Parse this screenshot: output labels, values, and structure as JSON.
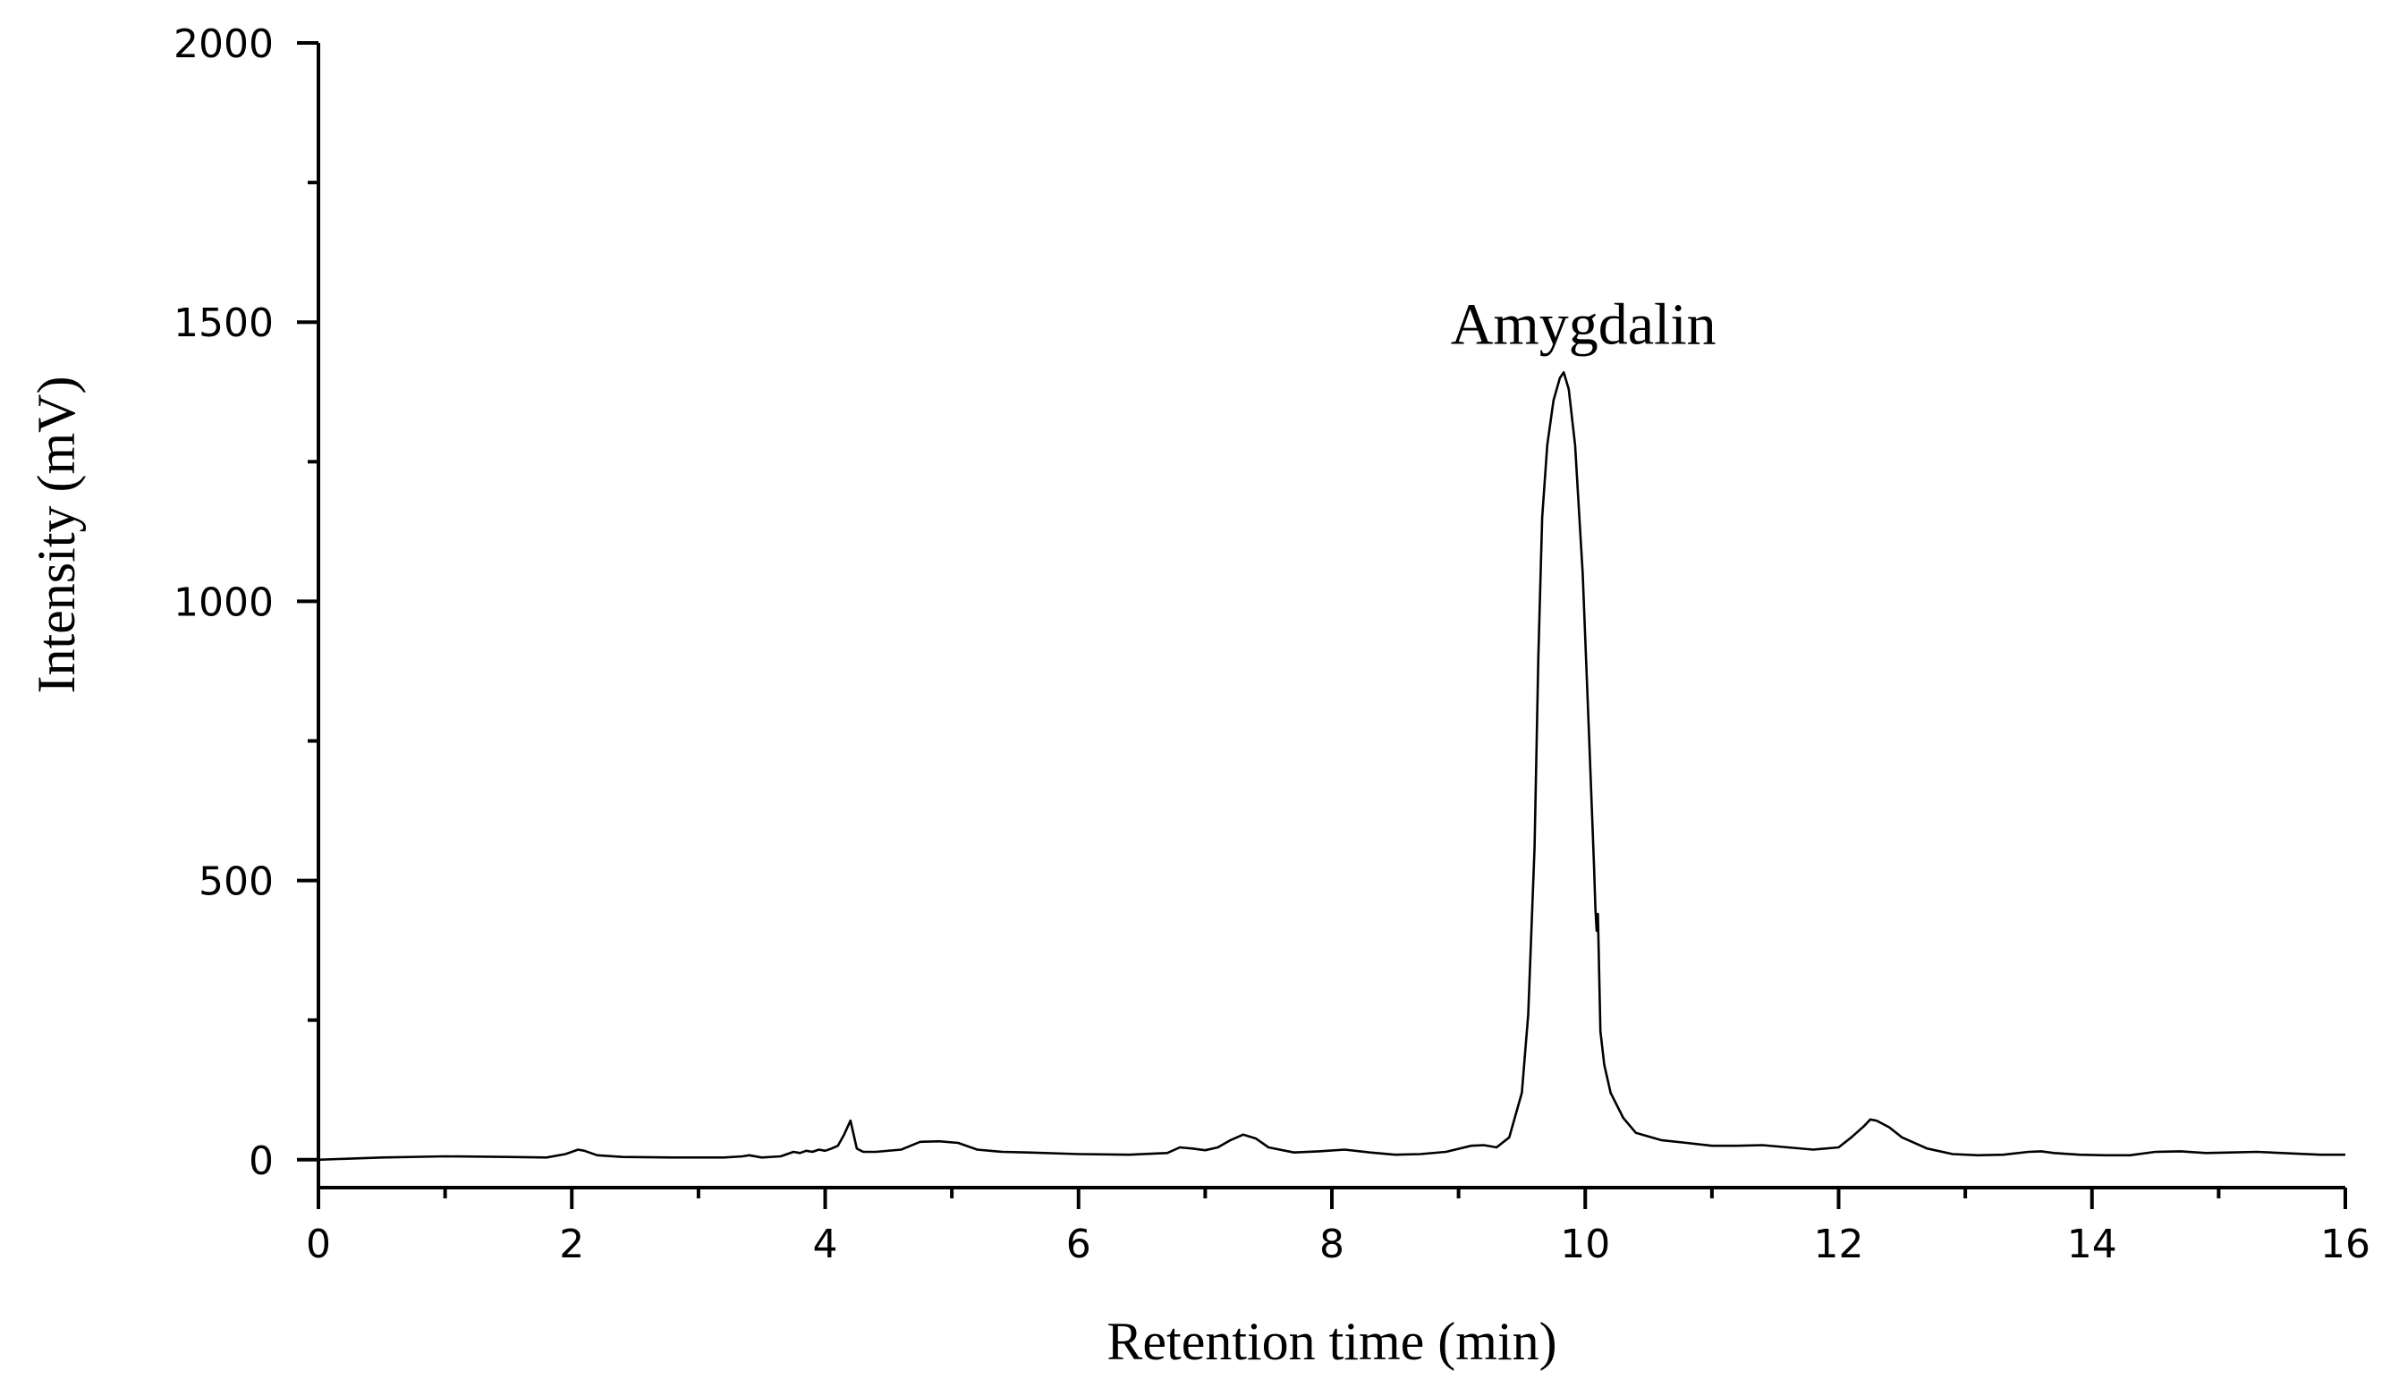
{
  "chart_data": {
    "type": "line",
    "title": "",
    "xlabel": "Retention time (min)",
    "ylabel": "Intensity (mV)",
    "xlim": [
      0,
      16
    ],
    "ylim": [
      -50,
      2000
    ],
    "x_ticks": [
      0,
      2,
      4,
      6,
      8,
      10,
      12,
      14,
      16
    ],
    "x_tick_labels": [
      "0",
      "2",
      "4",
      "6",
      "8",
      "10",
      "12",
      "14",
      "16"
    ],
    "y_ticks": [
      0,
      500,
      1000,
      1500,
      2000
    ],
    "y_tick_labels": [
      "0",
      "500",
      "1000",
      "1500",
      "2000"
    ],
    "grid": false,
    "annotations": [
      {
        "text": "Amygdalin",
        "x": 9.83,
        "y": 1410
      }
    ],
    "series": [
      {
        "color": "#000000",
        "x": [
          0,
          0.5,
          1.0,
          1.5,
          1.8,
          1.95,
          2.05,
          2.1,
          2.2,
          2.4,
          2.8,
          3.2,
          3.35,
          3.4,
          3.5,
          3.65,
          3.75,
          3.8,
          3.85,
          3.9,
          3.95,
          4.0,
          4.05,
          4.1,
          4.15,
          4.2,
          4.25,
          4.3,
          4.4,
          4.6,
          4.75,
          4.9,
          5.05,
          5.2,
          5.35,
          5.4,
          5.6,
          6.0,
          6.4,
          6.7,
          6.8,
          6.9,
          7.0,
          7.1,
          7.2,
          7.3,
          7.4,
          7.5,
          7.7,
          7.9,
          8.1,
          8.3,
          8.5,
          8.7,
          8.9,
          9.1,
          9.2,
          9.3,
          9.4,
          9.5,
          9.55,
          9.6,
          9.63,
          9.66,
          9.7,
          9.75,
          9.8,
          9.83,
          9.87,
          9.92,
          9.98,
          10.03,
          10.07,
          10.08,
          10.09,
          10.1,
          10.12,
          10.15,
          10.2,
          10.3,
          10.4,
          10.6,
          10.8,
          11.0,
          11.2,
          11.4,
          11.6,
          11.8,
          12.0,
          12.1,
          12.2,
          12.25,
          12.3,
          12.4,
          12.5,
          12.7,
          12.9,
          13.1,
          13.3,
          13.5,
          13.6,
          13.7,
          13.9,
          14.1,
          14.3,
          14.5,
          14.7,
          14.9,
          15.1,
          15.3,
          15.5,
          15.8,
          16.0
        ],
        "y": [
          0,
          4,
          6,
          5,
          4,
          10,
          18,
          16,
          8,
          5,
          4,
          4,
          6,
          8,
          4,
          6,
          14,
          12,
          16,
          14,
          18,
          16,
          20,
          25,
          45,
          70,
          20,
          14,
          14,
          18,
          32,
          33,
          30,
          18,
          15,
          14,
          13,
          10,
          9,
          12,
          22,
          20,
          17,
          22,
          35,
          45,
          38,
          22,
          13,
          15,
          18,
          13,
          9,
          10,
          14,
          25,
          26,
          22,
          40,
          120,
          260,
          560,
          900,
          1150,
          1280,
          1360,
          1400,
          1410,
          1380,
          1280,
          1050,
          760,
          520,
          450,
          410,
          440,
          230,
          170,
          120,
          75,
          48,
          35,
          30,
          25,
          25,
          26,
          22,
          18,
          22,
          40,
          60,
          72,
          70,
          58,
          40,
          20,
          10,
          8,
          9,
          14,
          15,
          12,
          9,
          8,
          8,
          14,
          15,
          12,
          13,
          14,
          12,
          9,
          9
        ]
      }
    ]
  }
}
